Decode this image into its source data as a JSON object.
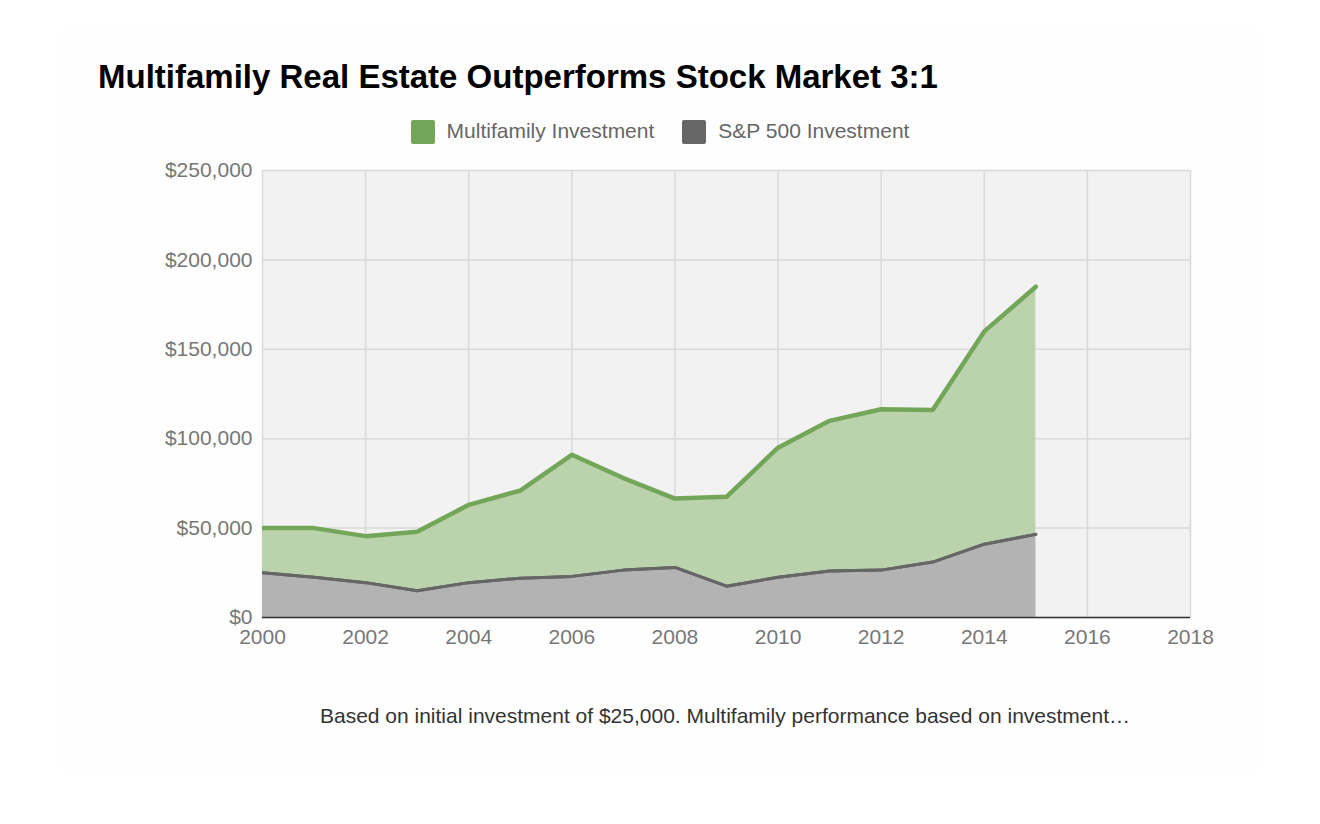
{
  "chart_data": {
    "type": "area",
    "title": "Multifamily Real Estate Outperforms Stock Market 3:1",
    "caption": "Based on initial investment of $25,000. Multifamily performance based on investment…",
    "x": [
      2000,
      2001,
      2002,
      2003,
      2004,
      2005,
      2006,
      2007,
      2008,
      2009,
      2010,
      2011,
      2012,
      2013,
      2014,
      2015
    ],
    "series": [
      {
        "name": "Multifamily Investment",
        "color": "#74a65a",
        "values": [
          50000,
          50000,
          45500,
          48000,
          63000,
          71000,
          91000,
          78000,
          66500,
          67500,
          95000,
          110000,
          116500,
          116000,
          160000,
          185000
        ]
      },
      {
        "name": "S&P 500 Investment",
        "color": "#666666",
        "values": [
          25000,
          22500,
          19500,
          15000,
          19500,
          22000,
          23000,
          26500,
          28000,
          17500,
          22500,
          26000,
          26500,
          31000,
          41000,
          46500
        ]
      }
    ],
    "xlim": [
      2000,
      2018
    ],
    "xticks": [
      2000,
      2002,
      2004,
      2006,
      2008,
      2010,
      2012,
      2014,
      2016,
      2018
    ],
    "ylim": [
      0,
      250000
    ],
    "yticks": [
      {
        "value": 0,
        "label": "$0"
      },
      {
        "value": 50000,
        "label": "$50,000"
      },
      {
        "value": 100000,
        "label": "$100,000"
      },
      {
        "value": 150000,
        "label": "$150,000"
      },
      {
        "value": 200000,
        "label": "$200,000"
      },
      {
        "value": 250000,
        "label": "$250,000"
      }
    ],
    "grid": true,
    "legend": "top",
    "stacked": false
  }
}
